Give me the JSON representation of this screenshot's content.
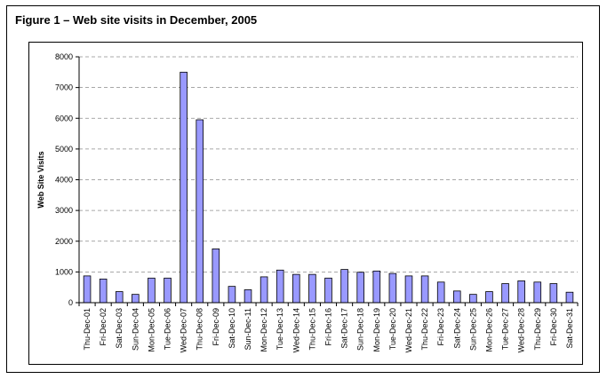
{
  "figure": {
    "title": "Figure 1 – Web site visits in December, 2005"
  },
  "chart_data": {
    "type": "bar",
    "title": "",
    "xlabel": "",
    "ylabel": "Web Site Visits",
    "ylim": [
      0,
      8000
    ],
    "yticks": [
      0,
      1000,
      2000,
      3000,
      4000,
      5000,
      6000,
      7000,
      8000
    ],
    "grid": true,
    "bar_color": "#9999ff",
    "categories": [
      "Thu-Dec-01",
      "Fri-Dec-02",
      "Sat-Dec-03",
      "Sun-Dec-04",
      "Mon-Dec-05",
      "Tue-Dec-06",
      "Wed-Dec-07",
      "Thu-Dec-08",
      "Fri-Dec-09",
      "Sat-Dec-10",
      "Sun-Dec-11",
      "Mon-Dec-12",
      "Tue-Dec-13",
      "Wed-Dec-14",
      "Thu-Dec-15",
      "Fri-Dec-16",
      "Sat-Dec-17",
      "Sun-Dec-18",
      "Mon-Dec-19",
      "Tue-Dec-20",
      "Wed-Dec-21",
      "Thu-Dec-22",
      "Fri-Dec-23",
      "Sat-Dec-24",
      "Sun-Dec-25",
      "Mon-Dec-26",
      "Tue-Dec-27",
      "Wed-Dec-28",
      "Thu-Dec-29",
      "Fri-Dec-30",
      "Sat-Dec-31"
    ],
    "values": [
      870,
      770,
      360,
      270,
      800,
      800,
      7500,
      5950,
      1750,
      530,
      420,
      840,
      1060,
      920,
      920,
      800,
      1080,
      990,
      1030,
      950,
      870,
      870,
      670,
      380,
      270,
      360,
      620,
      710,
      670,
      620,
      340
    ]
  }
}
